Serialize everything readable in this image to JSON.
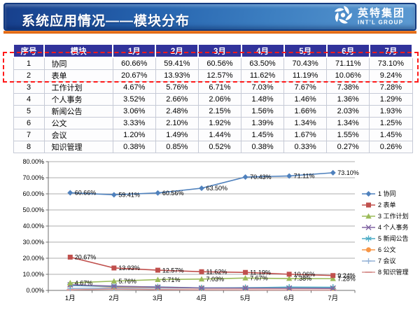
{
  "header": {
    "title": "系统应用情况——模块分布",
    "logo": {
      "cn": "英特集团",
      "en": "INT'L GROUP"
    }
  },
  "accent_color": "#e06a10",
  "highlight_color": "#ff1a1a",
  "table": {
    "columns": [
      "序号",
      "模块",
      "1月",
      "2月",
      "3月",
      "4月",
      "5月",
      "6月",
      "7月"
    ],
    "rows": [
      {
        "no": "1",
        "module": "协同",
        "values": [
          "60.66%",
          "59.41%",
          "60.56%",
          "63.50%",
          "70.43%",
          "71.11%",
          "73.10%"
        ]
      },
      {
        "no": "2",
        "module": "表单",
        "values": [
          "20.67%",
          "13.93%",
          "12.57%",
          "11.62%",
          "11.19%",
          "10.06%",
          "9.24%"
        ]
      },
      {
        "no": "3",
        "module": "工作计划",
        "values": [
          "4.67%",
          "5.76%",
          "6.71%",
          "7.03%",
          "7.67%",
          "7.38%",
          "7.28%"
        ]
      },
      {
        "no": "4",
        "module": "个人事务",
        "values": [
          "3.52%",
          "2.66%",
          "2.06%",
          "1.48%",
          "1.46%",
          "1.36%",
          "1.29%"
        ]
      },
      {
        "no": "5",
        "module": "新闻公告",
        "values": [
          "3.06%",
          "2.48%",
          "2.15%",
          "1.56%",
          "1.66%",
          "2.03%",
          "1.93%"
        ]
      },
      {
        "no": "6",
        "module": "公文",
        "values": [
          "3.33%",
          "2.10%",
          "1.92%",
          "1.39%",
          "1.34%",
          "1.34%",
          "1.25%"
        ]
      },
      {
        "no": "7",
        "module": "会议",
        "values": [
          "1.20%",
          "1.49%",
          "1.44%",
          "1.45%",
          "1.67%",
          "1.55%",
          "1.45%"
        ]
      },
      {
        "no": "8",
        "module": "知识管理",
        "values": [
          "0.38%",
          "0.85%",
          "0.52%",
          "0.38%",
          "0.33%",
          "0.27%",
          "0.26%"
        ]
      }
    ],
    "highlighted_rows": [
      1,
      2
    ]
  },
  "chart_data": {
    "type": "line",
    "title": "",
    "x": [
      "1月",
      "2月",
      "3月",
      "4月",
      "5月",
      "6月",
      "7月"
    ],
    "ylabel": "",
    "xlabel": "",
    "ylim": [
      0,
      80
    ],
    "ytick_step": 10,
    "ytick_labels": [
      "0.00%",
      "10.00%",
      "20.00%",
      "30.00%",
      "40.00%",
      "50.00%",
      "60.00%",
      "70.00%",
      "80.00%"
    ],
    "grid": true,
    "legend_position": "right",
    "series": [
      {
        "name": "1 协同",
        "color": "#4f81bd",
        "marker": "diamond",
        "show_labels": true,
        "values": [
          60.66,
          59.41,
          60.56,
          63.5,
          70.43,
          71.11,
          73.1
        ]
      },
      {
        "name": "2 表单",
        "color": "#c0504d",
        "marker": "square",
        "show_labels": true,
        "values": [
          20.67,
          13.93,
          12.57,
          11.62,
          11.19,
          10.06,
          9.24
        ]
      },
      {
        "name": "3 工作计划",
        "color": "#9bbb59",
        "marker": "triangle",
        "show_labels": true,
        "values": [
          4.67,
          5.76,
          6.71,
          7.03,
          7.67,
          7.38,
          7.28
        ]
      },
      {
        "name": "4 个人事务",
        "color": "#8064a2",
        "marker": "x",
        "show_labels": false,
        "values": [
          3.52,
          2.66,
          2.06,
          1.48,
          1.46,
          1.36,
          1.29
        ]
      },
      {
        "name": "5 新闻公告",
        "color": "#4bacc6",
        "marker": "asterisk",
        "show_labels": false,
        "values": [
          3.06,
          2.48,
          2.15,
          1.56,
          1.66,
          2.03,
          1.93
        ]
      },
      {
        "name": "6 公文",
        "color": "#f79646",
        "marker": "circle",
        "show_labels": false,
        "values": [
          3.33,
          2.1,
          1.92,
          1.39,
          1.34,
          1.34,
          1.25
        ]
      },
      {
        "name": "7 会议",
        "color": "#95b3d7",
        "marker": "plus",
        "show_labels": false,
        "values": [
          1.2,
          1.49,
          1.44,
          1.45,
          1.67,
          1.55,
          1.45
        ]
      },
      {
        "name": "8 知识管理",
        "color": "#d99694",
        "marker": "dash",
        "show_labels": false,
        "values": [
          0.38,
          0.85,
          0.52,
          0.38,
          0.33,
          0.27,
          0.26
        ]
      }
    ]
  }
}
